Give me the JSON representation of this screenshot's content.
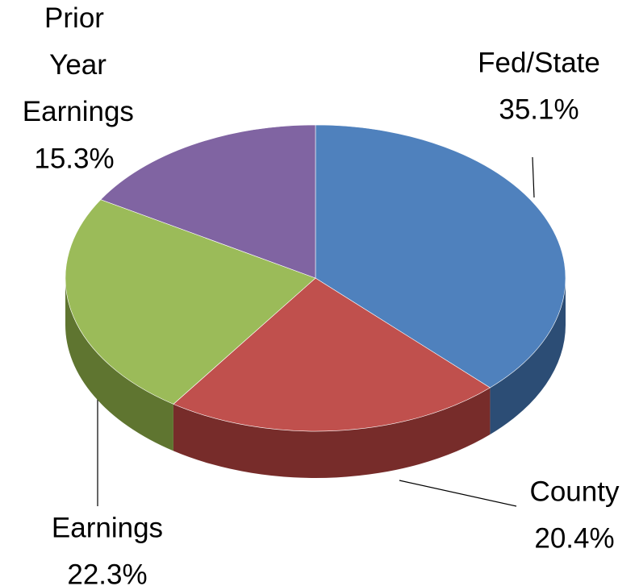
{
  "chart_data": {
    "type": "pie",
    "categories": [
      "Fed/State",
      "County",
      "Earnings",
      "Prior Year Earnings"
    ],
    "values": [
      35.1,
      20.4,
      22.3,
      15.3
    ],
    "value_labels": [
      "35.1%",
      "20.4%",
      "22.3%",
      "15.3%"
    ],
    "colors": [
      "#4f81bd",
      "#c0504d",
      "#9bbb59",
      "#8064a2"
    ],
    "side_colors": [
      "#2c4d75",
      "#772c2a",
      "#5f7530",
      "#4d3b62"
    ]
  }
}
